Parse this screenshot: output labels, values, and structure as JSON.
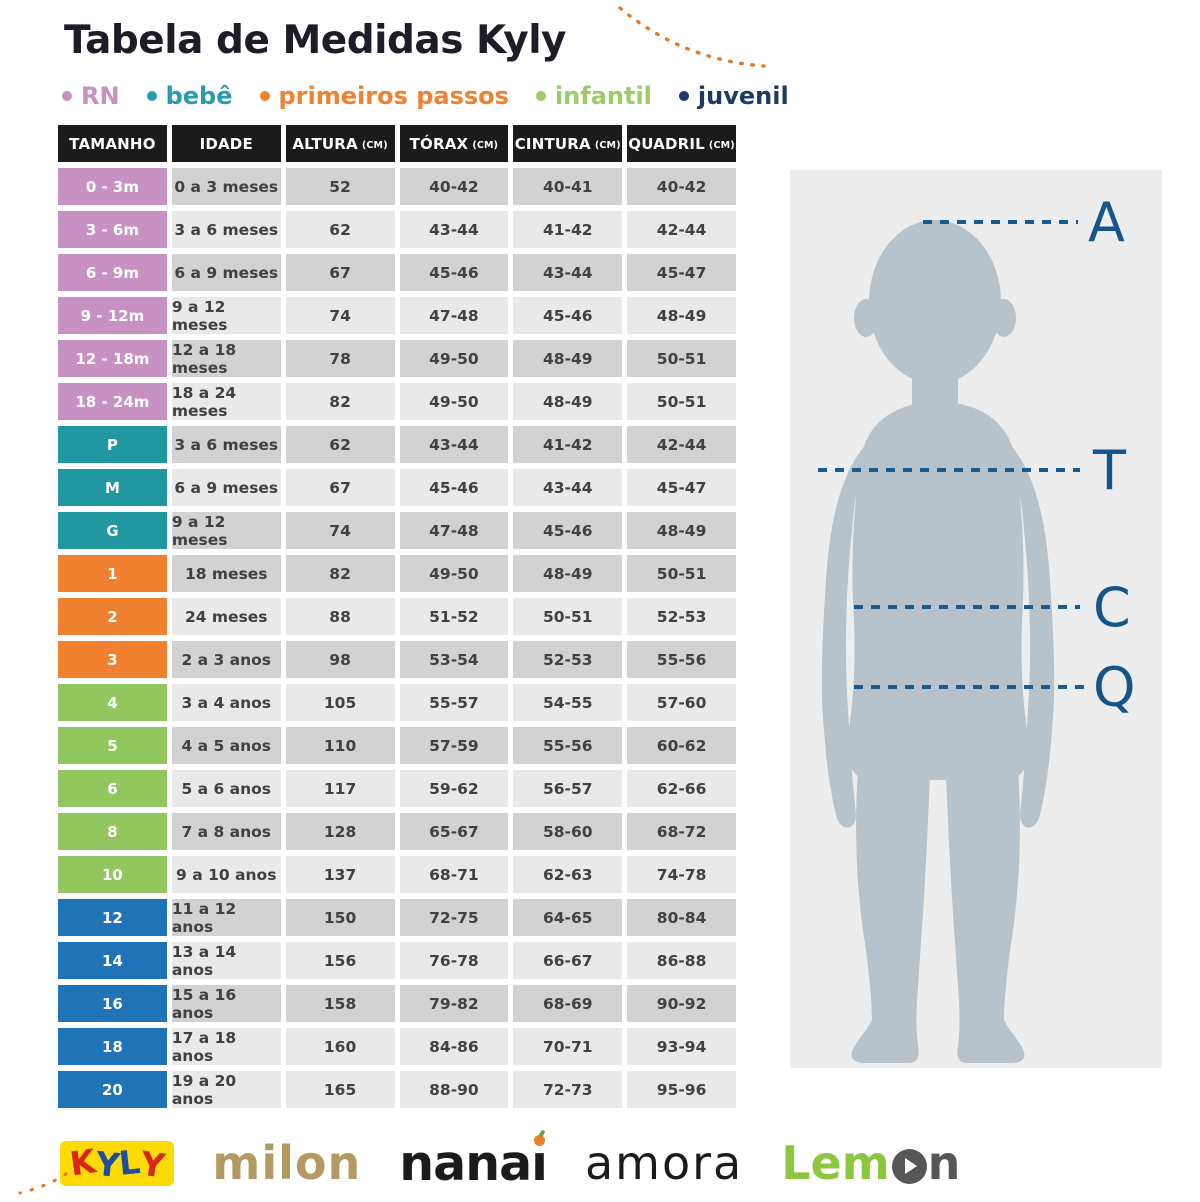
{
  "title": "Tabela de Medidas Kyly",
  "legend": [
    {
      "id": "rn",
      "label": "RN",
      "color": "#c791c3"
    },
    {
      "id": "bebe",
      "label": "bebê",
      "color": "#2a9aae"
    },
    {
      "id": "primeiros_passos",
      "label": "primeiros passos",
      "color": "#f08130"
    },
    {
      "id": "infantil",
      "label": "infantil",
      "color": "#9ccb67"
    },
    {
      "id": "juvenil",
      "label": "juvenil",
      "color": "#1d3a66"
    }
  ],
  "table": {
    "headers": [
      {
        "label": "TAMANHO",
        "unit": ""
      },
      {
        "label": "IDADE",
        "unit": ""
      },
      {
        "label": "ALTURA",
        "unit": "(CM)"
      },
      {
        "label": "TÓRAX",
        "unit": "(CM)"
      },
      {
        "label": "CINTURA",
        "unit": "(CM)"
      },
      {
        "label": "QUADRIL",
        "unit": "(CM)"
      }
    ],
    "group_colors": {
      "rn": "#c791c3",
      "bebe": "#2197a1",
      "primeiros_passos": "#f08130",
      "infantil": "#92c75f",
      "juvenil": "#2173b8"
    },
    "shades": {
      "dark": "#d2d2d3",
      "light": "#e9e9ea"
    },
    "rows": [
      {
        "size": "0 - 3m",
        "group": "rn",
        "shade": "dark",
        "idade": "0 a 3 meses",
        "altura": "52",
        "torax": "40-42",
        "cintura": "40-41",
        "quadril": "40-42"
      },
      {
        "size": "3 - 6m",
        "group": "rn",
        "shade": "light",
        "idade": "3 a 6 meses",
        "altura": "62",
        "torax": "43-44",
        "cintura": "41-42",
        "quadril": "42-44"
      },
      {
        "size": "6 - 9m",
        "group": "rn",
        "shade": "dark",
        "idade": "6 a 9 meses",
        "altura": "67",
        "torax": "45-46",
        "cintura": "43-44",
        "quadril": "45-47"
      },
      {
        "size": "9 - 12m",
        "group": "rn",
        "shade": "light",
        "idade": "9 a 12 meses",
        "altura": "74",
        "torax": "47-48",
        "cintura": "45-46",
        "quadril": "48-49"
      },
      {
        "size": "12 - 18m",
        "group": "rn",
        "shade": "dark",
        "idade": "12 a 18 meses",
        "altura": "78",
        "torax": "49-50",
        "cintura": "48-49",
        "quadril": "50-51"
      },
      {
        "size": "18 - 24m",
        "group": "rn",
        "shade": "light",
        "idade": "18 a 24 meses",
        "altura": "82",
        "torax": "49-50",
        "cintura": "48-49",
        "quadril": "50-51"
      },
      {
        "size": "P",
        "group": "bebe",
        "shade": "dark",
        "idade": "3 a 6 meses",
        "altura": "62",
        "torax": "43-44",
        "cintura": "41-42",
        "quadril": "42-44"
      },
      {
        "size": "M",
        "group": "bebe",
        "shade": "light",
        "idade": "6 a 9 meses",
        "altura": "67",
        "torax": "45-46",
        "cintura": "43-44",
        "quadril": "45-47"
      },
      {
        "size": "G",
        "group": "bebe",
        "shade": "dark",
        "idade": "9 a 12 meses",
        "altura": "74",
        "torax": "47-48",
        "cintura": "45-46",
        "quadril": "48-49"
      },
      {
        "size": "1",
        "group": "primeiros_passos",
        "shade": "dark",
        "idade": "18 meses",
        "altura": "82",
        "torax": "49-50",
        "cintura": "48-49",
        "quadril": "50-51"
      },
      {
        "size": "2",
        "group": "primeiros_passos",
        "shade": "light",
        "idade": "24 meses",
        "altura": "88",
        "torax": "51-52",
        "cintura": "50-51",
        "quadril": "52-53"
      },
      {
        "size": "3",
        "group": "primeiros_passos",
        "shade": "dark",
        "idade": "2 a 3 anos",
        "altura": "98",
        "torax": "53-54",
        "cintura": "52-53",
        "quadril": "55-56"
      },
      {
        "size": "4",
        "group": "infantil",
        "shade": "light",
        "idade": "3 a 4 anos",
        "altura": "105",
        "torax": "55-57",
        "cintura": "54-55",
        "quadril": "57-60"
      },
      {
        "size": "5",
        "group": "infantil",
        "shade": "dark",
        "idade": "4 a 5 anos",
        "altura": "110",
        "torax": "57-59",
        "cintura": "55-56",
        "quadril": "60-62"
      },
      {
        "size": "6",
        "group": "infantil",
        "shade": "light",
        "idade": "5 a 6 anos",
        "altura": "117",
        "torax": "59-62",
        "cintura": "56-57",
        "quadril": "62-66"
      },
      {
        "size": "8",
        "group": "infantil",
        "shade": "dark",
        "idade": "7 a 8 anos",
        "altura": "128",
        "torax": "65-67",
        "cintura": "58-60",
        "quadril": "68-72"
      },
      {
        "size": "10",
        "group": "infantil",
        "shade": "light",
        "idade": "9 a 10 anos",
        "altura": "137",
        "torax": "68-71",
        "cintura": "62-63",
        "quadril": "74-78"
      },
      {
        "size": "12",
        "group": "juvenil",
        "shade": "dark",
        "idade": "11 a 12 anos",
        "altura": "150",
        "torax": "72-75",
        "cintura": "64-65",
        "quadril": "80-84"
      },
      {
        "size": "14",
        "group": "juvenil",
        "shade": "light",
        "idade": "13 a 14 anos",
        "altura": "156",
        "torax": "76-78",
        "cintura": "66-67",
        "quadril": "86-88"
      },
      {
        "size": "16",
        "group": "juvenil",
        "shade": "dark",
        "idade": "15 a 16 anos",
        "altura": "158",
        "torax": "79-82",
        "cintura": "68-69",
        "quadril": "90-92"
      },
      {
        "size": "18",
        "group": "juvenil",
        "shade": "light",
        "idade": "17 a 18 anos",
        "altura": "160",
        "torax": "84-86",
        "cintura": "70-71",
        "quadril": "93-94"
      },
      {
        "size": "20",
        "group": "juvenil",
        "shade": "light",
        "idade": "19 a 20 anos",
        "altura": "165",
        "torax": "88-90",
        "cintura": "72-73",
        "quadril": "95-96"
      }
    ]
  },
  "figure": {
    "labels": [
      "A",
      "T",
      "C",
      "Q"
    ],
    "line_color": "#155c94",
    "letter_color": "#14568c",
    "panel_bg": "#ededee",
    "body_color": "#b7c2ca"
  },
  "brands": {
    "kyly": {
      "bg": "#fdd905",
      "letters": [
        {
          "ch": "K",
          "color": "#d8261f"
        },
        {
          "ch": "Y",
          "color": "#1d4f9e"
        },
        {
          "ch": "L",
          "color": "#1d4f9e"
        },
        {
          "ch": "Y",
          "color": "#d8261f"
        }
      ]
    },
    "milon": {
      "text": "milon",
      "color": "#b49a62"
    },
    "nanai": {
      "pre": "nana",
      "stem": "ı",
      "color": "#1b1b1b",
      "apple_color": "#f07d28",
      "leaf_color": "#6aa33f"
    },
    "amora": {
      "text": "amora",
      "color": "#1b1b1b"
    },
    "lemon": {
      "pre": "Lem",
      "post": "n",
      "green": "#8dc63f",
      "dark": "#57575a"
    }
  },
  "decorations": {
    "arc_color": "#e87722"
  }
}
